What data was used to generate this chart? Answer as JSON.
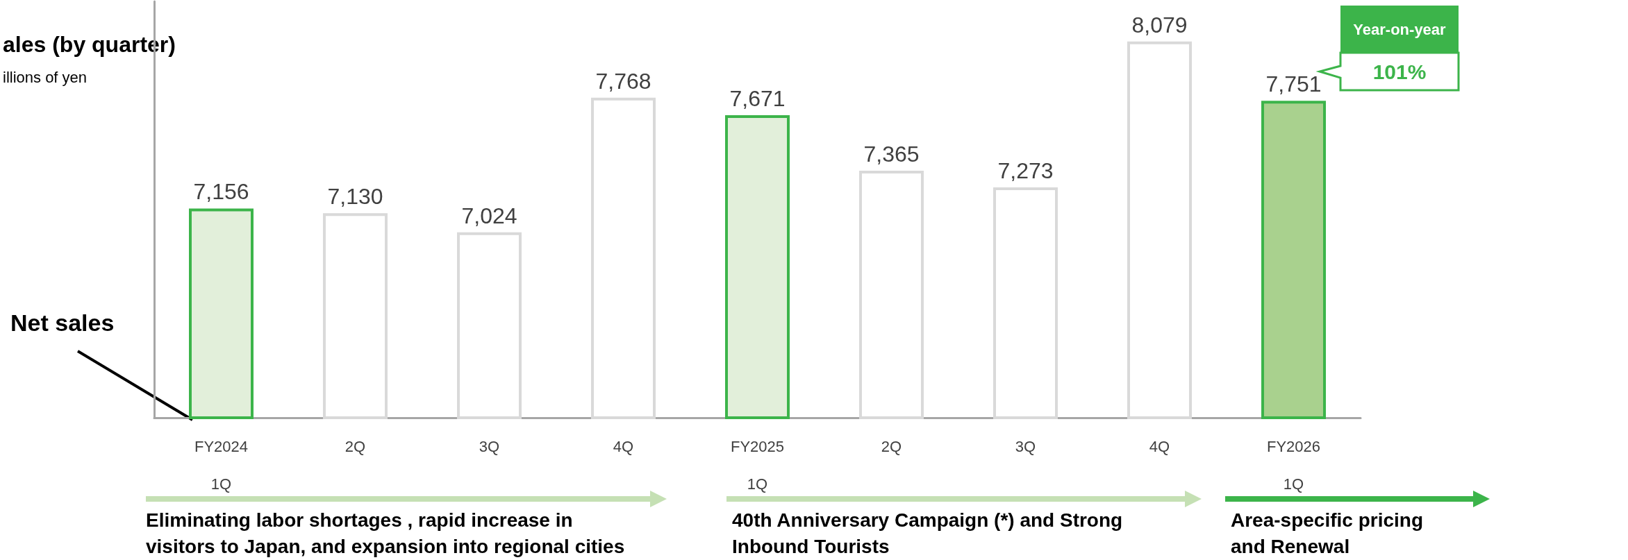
{
  "chart_data": {
    "type": "bar",
    "title": "ales (by quarter)",
    "subtitle": "illions of yen",
    "categories": [
      "FY2024\n1Q",
      "2Q",
      "3Q",
      "4Q",
      "FY2025\n1Q",
      "2Q",
      "3Q",
      "4Q",
      "FY2026\n1Q"
    ],
    "values": [
      7156,
      7130,
      7024,
      7768,
      7671,
      7365,
      7273,
      8079,
      7751
    ],
    "value_labels": [
      "7,156",
      "7,130",
      "7,024",
      "7,768",
      "7,671",
      "7,365",
      "7,273",
      "8,079",
      "7,751"
    ],
    "colors": [
      "#e2efda",
      "#ffffff",
      "#ffffff",
      "#ffffff",
      "#e2efda",
      "#ffffff",
      "#ffffff",
      "#ffffff",
      "#a9d18e"
    ],
    "ylim": [
      6000,
      8300
    ],
    "grid": false,
    "annotations": [
      "Net sales",
      "Year-on-year",
      "101%",
      "Eliminating labor shortages , rapid increase in\nvisitors to Japan, and expansion into regional cities",
      "40th Anniversary Campaign (*) and Strong\nInbound Tourists",
      "Area-specific pricing\nand Renewal"
    ]
  }
}
